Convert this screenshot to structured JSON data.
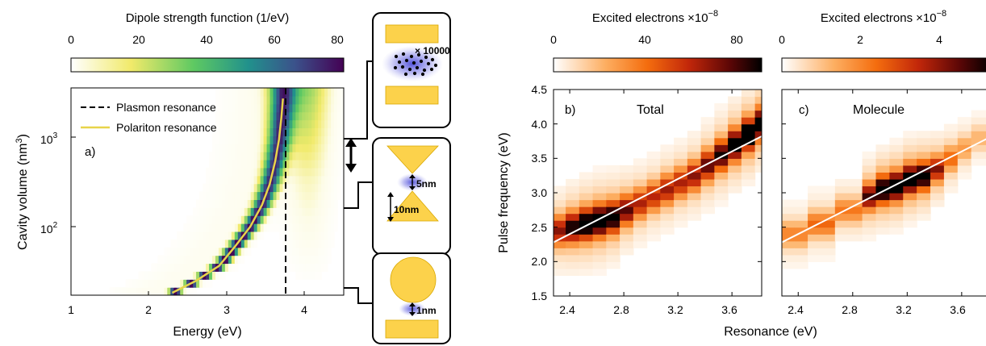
{
  "figure": {
    "panel_a": {
      "colorbar_title": "Dipole strength function (1/eV)",
      "colorbar_ticks": [
        "0",
        "20",
        "40",
        "60",
        "80"
      ],
      "xlabel": "Energy (eV)",
      "ylabel": "Cavity volume (nm",
      "ylabel_sup": "3",
      "ylabel_close": ")",
      "x_ticks": [
        "1",
        "2",
        "3",
        "4"
      ],
      "y_ticks": [
        {
          "base": "10",
          "exp": "3"
        },
        {
          "base": "10",
          "exp": "2"
        }
      ],
      "panel_label": "a)",
      "legend": [
        {
          "label": "Plasmon resonance",
          "style": "dashed",
          "color": "#000000"
        },
        {
          "label": "Polariton resonance",
          "style": "solid",
          "color": "#e8d44a"
        }
      ]
    },
    "schematics": {
      "top_label": "× 10000",
      "middle_gap_label": "5nm",
      "middle_size_label": "10nm",
      "bottom_gap_label": "1nm",
      "metal_color": "#fcd24b",
      "field_color": "#5b5bd9"
    },
    "panel_b": {
      "colorbar_title_text": "Excited electrons",
      "colorbar_title_scale": "×10",
      "colorbar_title_exp": "−8",
      "colorbar_ticks": [
        "0",
        "40",
        "80"
      ],
      "panel_label": "b)",
      "title": "Total",
      "ylabel": "Pulse frequency (eV)",
      "x_ticks": [
        "2.4",
        "2.8",
        "3.2",
        "3.6"
      ],
      "y_ticks": [
        "1.5",
        "2.0",
        "2.5",
        "3.0",
        "3.5",
        "4.0",
        "4.5"
      ]
    },
    "panel_c": {
      "colorbar_title_text": "Excited electrons",
      "colorbar_title_scale": "×10",
      "colorbar_title_exp": "−8",
      "colorbar_ticks": [
        "0",
        "2",
        "4"
      ],
      "panel_label": "c)",
      "title": "Molecule",
      "x_ticks": [
        "2.4",
        "2.8",
        "3.2",
        "3.6"
      ]
    },
    "shared_xlabel": "Resonance (eV)"
  },
  "chart_data": [
    {
      "type": "heatmap",
      "title": "",
      "xlabel": "Energy (eV)",
      "ylabel": "Cavity volume (nm^3)",
      "xlim": [
        1.0,
        4.5
      ],
      "ylim": [
        15,
        4000
      ],
      "y_scale": "log",
      "colorbar": {
        "label": "Dipole strength function (1/eV)",
        "range": [
          0,
          80
        ]
      },
      "plasmon_resonance_eV": 3.77,
      "polariton_resonance": {
        "x": [
          2.3,
          2.6,
          2.9,
          3.1,
          3.3,
          3.45,
          3.55,
          3.62,
          3.67,
          3.7,
          3.72
        ],
        "y": [
          16,
          22,
          33,
          55,
          95,
          170,
          300,
          550,
          1000,
          1800,
          3000
        ]
      },
      "legend": [
        "Plasmon resonance",
        "Polariton resonance"
      ]
    },
    {
      "type": "heatmap",
      "title": "Total",
      "xlabel": "Resonance (eV)",
      "ylabel": "Pulse frequency (eV)",
      "xlim": [
        2.28,
        3.82
      ],
      "ylim": [
        1.5,
        4.5
      ],
      "colorbar": {
        "label": "Excited electrons ×10^-8",
        "range": [
          0,
          90
        ]
      },
      "reference_line": {
        "x": [
          2.28,
          3.82
        ],
        "y": [
          2.28,
          3.82
        ]
      },
      "cells": {
        "x": [
          2.32,
          2.42,
          2.52,
          2.62,
          2.72,
          2.82,
          2.92,
          3.02,
          3.12,
          3.22,
          3.32,
          3.42,
          3.52,
          3.62,
          3.72,
          3.8
        ],
        "y": [
          1.55,
          1.65,
          1.75,
          1.85,
          1.95,
          2.05,
          2.15,
          2.25,
          2.35,
          2.45,
          2.55,
          2.65,
          2.75,
          2.85,
          2.95,
          3.05,
          3.15,
          3.25,
          3.35,
          3.45,
          3.55,
          3.65,
          3.75,
          3.85,
          3.95,
          4.05,
          4.15,
          4.25,
          4.35,
          4.45
        ],
        "peak_ridge": [
          {
            "x": 2.32,
            "y": 2.45,
            "v": 55
          },
          {
            "x": 2.42,
            "y": 2.5,
            "v": 72
          },
          {
            "x": 2.52,
            "y": 2.55,
            "v": 85
          },
          {
            "x": 2.62,
            "y": 2.6,
            "v": 88
          },
          {
            "x": 2.72,
            "y": 2.65,
            "v": 80
          },
          {
            "x": 2.82,
            "y": 2.75,
            "v": 62
          },
          {
            "x": 2.92,
            "y": 2.85,
            "v": 50
          },
          {
            "x": 3.02,
            "y": 2.95,
            "v": 48
          },
          {
            "x": 3.12,
            "y": 3.05,
            "v": 52
          },
          {
            "x": 3.22,
            "y": 3.15,
            "v": 50
          },
          {
            "x": 3.32,
            "y": 3.25,
            "v": 55
          },
          {
            "x": 3.42,
            "y": 3.4,
            "v": 62
          },
          {
            "x": 3.52,
            "y": 3.55,
            "v": 70
          },
          {
            "x": 3.62,
            "y": 3.7,
            "v": 80
          },
          {
            "x": 3.72,
            "y": 3.85,
            "v": 88
          },
          {
            "x": 3.8,
            "y": 4.0,
            "v": 85
          }
        ]
      }
    },
    {
      "type": "heatmap",
      "title": "Molecule",
      "xlabel": "Resonance (eV)",
      "ylabel": "Pulse frequency (eV)",
      "xlim": [
        2.28,
        3.82
      ],
      "ylim": [
        1.5,
        4.5
      ],
      "colorbar": {
        "label": "Excited electrons ×10^-8",
        "range": [
          0,
          5
        ]
      },
      "reference_line": {
        "x": [
          2.28,
          3.82
        ],
        "y": [
          2.28,
          3.82
        ]
      },
      "peak_ridge": [
        {
          "x": 2.32,
          "y": 2.4,
          "v": 1.5
        },
        {
          "x": 2.52,
          "y": 2.55,
          "v": 1.8
        },
        {
          "x": 2.72,
          "y": 2.75,
          "v": 1.6
        },
        {
          "x": 2.92,
          "y": 2.95,
          "v": 3.5
        },
        {
          "x": 3.02,
          "y": 3.05,
          "v": 4.6
        },
        {
          "x": 3.12,
          "y": 3.1,
          "v": 5.0
        },
        {
          "x": 3.22,
          "y": 3.2,
          "v": 5.0
        },
        {
          "x": 3.32,
          "y": 3.25,
          "v": 4.5
        },
        {
          "x": 3.42,
          "y": 3.35,
          "v": 3.0
        },
        {
          "x": 3.52,
          "y": 3.5,
          "v": 1.8
        },
        {
          "x": 3.62,
          "y": 3.65,
          "v": 1.2
        },
        {
          "x": 3.72,
          "y": 3.8,
          "v": 0.9
        }
      ]
    }
  ]
}
